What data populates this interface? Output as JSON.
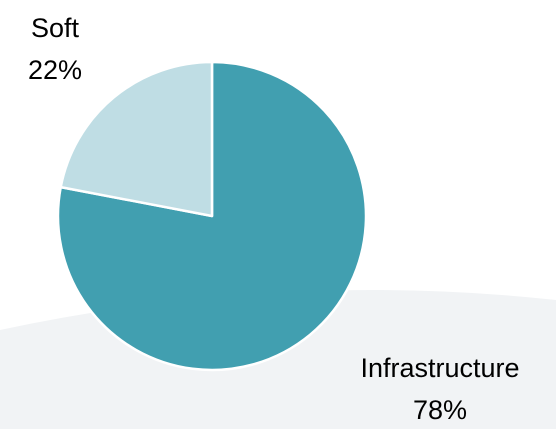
{
  "chart_data": {
    "type": "pie",
    "categories": [
      "Infrastructure",
      "Soft"
    ],
    "values": [
      78,
      22
    ],
    "value_labels": [
      "78%",
      "22%"
    ],
    "colors": [
      "#419fb0",
      "#bfdde4"
    ]
  }
}
